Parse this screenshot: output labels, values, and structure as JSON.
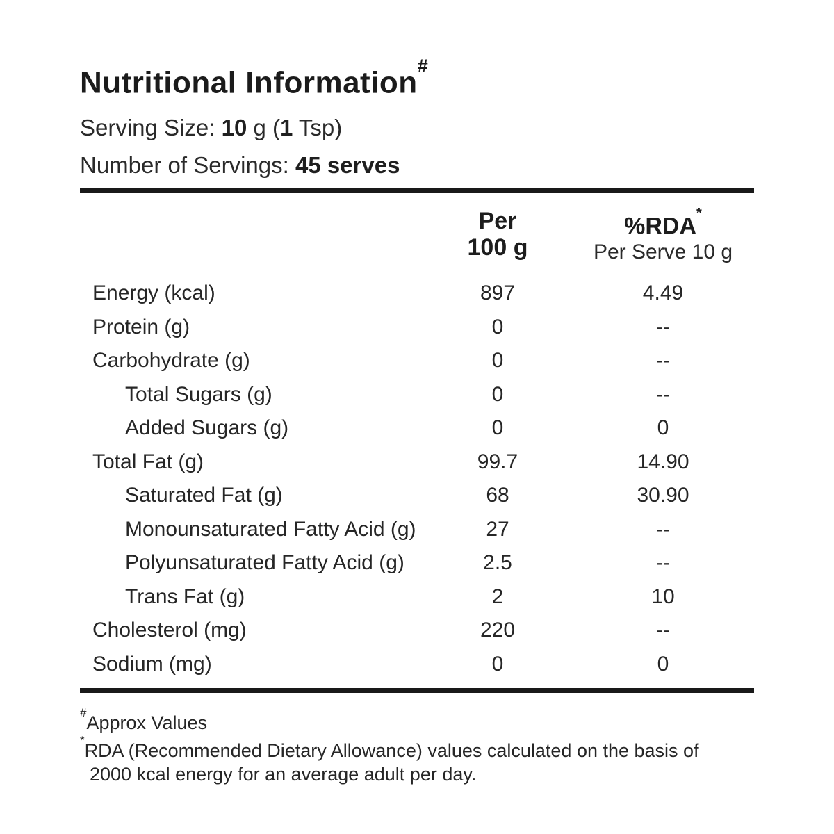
{
  "page": {
    "title": "Nutritional Information",
    "title_sup": "#"
  },
  "serving": {
    "size_label": "Serving Size: ",
    "size_num": "10",
    "size_mid": " g (",
    "size_num2": "1",
    "size_suffix": " Tsp)",
    "count_label": "Number of Servings: ",
    "count_value": "45 serves"
  },
  "table": {
    "columns": {
      "per100_line1": "Per",
      "per100_line2": "100 g",
      "rda_line1": "%RDA",
      "rda_sup": "*",
      "rda_line2": "Per Serve 10 g"
    },
    "rows": [
      {
        "label": "Energy (kcal)",
        "per100": "897",
        "rda": "4.49"
      },
      {
        "label": "Protein (g)",
        "per100": "0",
        "rda": "--"
      },
      {
        "label": "Carbohydrate (g)",
        "per100": "0",
        "rda": "--"
      },
      {
        "label": "Total Sugars (g)",
        "per100": "0",
        "rda": "--"
      },
      {
        "label": "Added Sugars (g)",
        "per100": "0",
        "rda": "0"
      },
      {
        "label": "Total Fat (g)",
        "per100": "99.7",
        "rda": "14.90"
      },
      {
        "label": "Saturated Fat (g)",
        "per100": "68",
        "rda": "30.90"
      },
      {
        "label": "Monounsaturated Fatty Acid (g)",
        "per100": "27",
        "rda": "--"
      },
      {
        "label": "Polyunsaturated Fatty Acid (g)",
        "per100": "2.5",
        "rda": "--"
      },
      {
        "label": "Trans Fat (g)",
        "per100": "2",
        "rda": "10"
      },
      {
        "label": "Cholesterol (mg)",
        "per100": "220",
        "rda": "--"
      },
      {
        "label": "Sodium (mg)",
        "per100": "0",
        "rda": "0"
      }
    ]
  },
  "footnotes": {
    "approx_sup": "#",
    "approx_text": "Approx Values",
    "rda_sup": "*",
    "rda_line1": "RDA (Recommended Dietary Allowance) values calculated on the basis of",
    "rda_line2": "2000 kcal energy for an average adult per day."
  },
  "colors": {
    "text": "#262626",
    "title": "#1b1b1b",
    "rule": "#191919",
    "background": "#ffffff"
  }
}
